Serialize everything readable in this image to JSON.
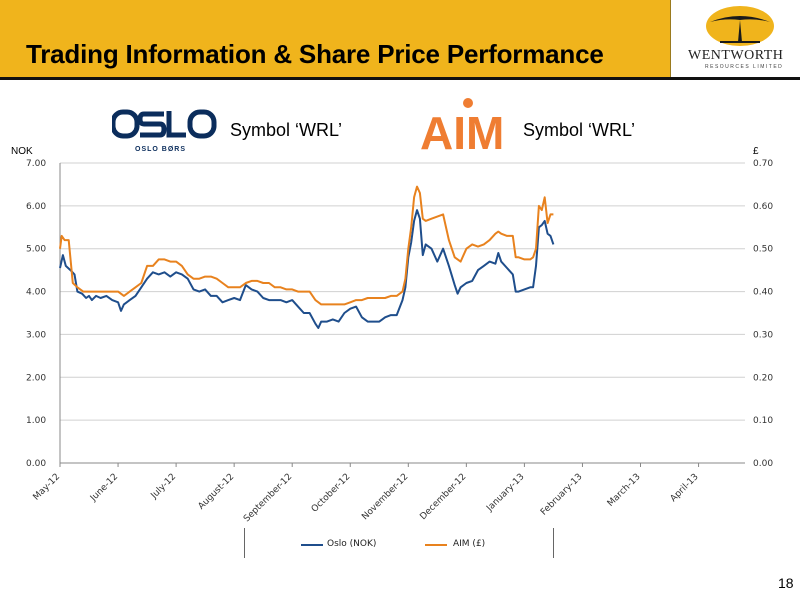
{
  "header": {
    "title": "Trading Information & Share Price Performance",
    "brand_color": "#f0b41c",
    "company_name": "WENTWORTH",
    "company_sub": "RESOURCES LIMITED"
  },
  "exchanges": {
    "oslo": {
      "logo_text": "OSLO BØRS",
      "symbol_label": "Symbol ‘WRL’"
    },
    "aim": {
      "logo_text": "AIM",
      "symbol_label": "Symbol ‘WRL’"
    }
  },
  "axis_units": {
    "left": "NOK",
    "right": "£"
  },
  "page_number": "18",
  "chart_data": {
    "type": "line",
    "x_categories": [
      "May-12",
      "June-12",
      "July-12",
      "August-12",
      "September-12",
      "October-12",
      "November-12",
      "December-12",
      "January-13",
      "February-13",
      "March-13",
      "April-13"
    ],
    "y_left": {
      "label": "NOK",
      "min": 0,
      "max": 7,
      "ticks": [
        "0.00",
        "1.00",
        "2.00",
        "3.00",
        "4.00",
        "5.00",
        "6.00",
        "7.00"
      ]
    },
    "y_right": {
      "label": "£",
      "min": 0,
      "max": 0.7,
      "ticks": [
        "0.00",
        "0.10",
        "0.20",
        "0.30",
        "0.40",
        "0.50",
        "0.60",
        "0.70"
      ]
    },
    "grid": true,
    "legend_position": "bottom",
    "series": [
      {
        "name": "Oslo (NOK)",
        "axis": "left",
        "color": "#1f4e8c",
        "points": [
          [
            0.0,
            4.55
          ],
          [
            0.05,
            4.85
          ],
          [
            0.1,
            4.6
          ],
          [
            0.18,
            4.5
          ],
          [
            0.25,
            4.4
          ],
          [
            0.3,
            4.0
          ],
          [
            0.38,
            3.95
          ],
          [
            0.45,
            3.85
          ],
          [
            0.5,
            3.9
          ],
          [
            0.55,
            3.8
          ],
          [
            0.62,
            3.9
          ],
          [
            0.7,
            3.85
          ],
          [
            0.8,
            3.9
          ],
          [
            0.9,
            3.8
          ],
          [
            1.0,
            3.75
          ],
          [
            1.05,
            3.55
          ],
          [
            1.1,
            3.7
          ],
          [
            1.2,
            3.8
          ],
          [
            1.3,
            3.9
          ],
          [
            1.4,
            4.1
          ],
          [
            1.5,
            4.3
          ],
          [
            1.6,
            4.45
          ],
          [
            1.7,
            4.4
          ],
          [
            1.8,
            4.45
          ],
          [
            1.9,
            4.35
          ],
          [
            2.0,
            4.45
          ],
          [
            2.1,
            4.4
          ],
          [
            2.2,
            4.3
          ],
          [
            2.3,
            4.05
          ],
          [
            2.4,
            4.0
          ],
          [
            2.5,
            4.05
          ],
          [
            2.6,
            3.9
          ],
          [
            2.7,
            3.9
          ],
          [
            2.8,
            3.75
          ],
          [
            2.9,
            3.8
          ],
          [
            3.0,
            3.85
          ],
          [
            3.1,
            3.8
          ],
          [
            3.2,
            4.15
          ],
          [
            3.3,
            4.05
          ],
          [
            3.4,
            4.0
          ],
          [
            3.5,
            3.85
          ],
          [
            3.6,
            3.8
          ],
          [
            3.7,
            3.8
          ],
          [
            3.8,
            3.8
          ],
          [
            3.9,
            3.75
          ],
          [
            4.0,
            3.8
          ],
          [
            4.1,
            3.65
          ],
          [
            4.2,
            3.5
          ],
          [
            4.3,
            3.5
          ],
          [
            4.4,
            3.25
          ],
          [
            4.45,
            3.15
          ],
          [
            4.5,
            3.3
          ],
          [
            4.6,
            3.3
          ],
          [
            4.7,
            3.35
          ],
          [
            4.8,
            3.3
          ],
          [
            4.9,
            3.5
          ],
          [
            5.0,
            3.6
          ],
          [
            5.1,
            3.65
          ],
          [
            5.2,
            3.4
          ],
          [
            5.3,
            3.3
          ],
          [
            5.4,
            3.3
          ],
          [
            5.5,
            3.3
          ],
          [
            5.6,
            3.4
          ],
          [
            5.7,
            3.45
          ],
          [
            5.8,
            3.45
          ],
          [
            5.9,
            3.8
          ],
          [
            5.95,
            4.1
          ],
          [
            6.0,
            4.8
          ],
          [
            6.05,
            5.15
          ],
          [
            6.1,
            5.65
          ],
          [
            6.15,
            5.9
          ],
          [
            6.2,
            5.7
          ],
          [
            6.25,
            4.85
          ],
          [
            6.3,
            5.1
          ],
          [
            6.4,
            5.0
          ],
          [
            6.5,
            4.7
          ],
          [
            6.6,
            5.0
          ],
          [
            6.7,
            4.6
          ],
          [
            6.8,
            4.15
          ],
          [
            6.85,
            3.95
          ],
          [
            6.9,
            4.1
          ],
          [
            7.0,
            4.2
          ],
          [
            7.1,
            4.25
          ],
          [
            7.2,
            4.5
          ],
          [
            7.3,
            4.6
          ],
          [
            7.4,
            4.7
          ],
          [
            7.5,
            4.65
          ],
          [
            7.55,
            4.9
          ],
          [
            7.6,
            4.7
          ],
          [
            7.7,
            4.55
          ],
          [
            7.8,
            4.4
          ],
          [
            7.85,
            4.0
          ],
          [
            7.9,
            4.0
          ],
          [
            8.0,
            4.05
          ],
          [
            8.1,
            4.1
          ],
          [
            8.15,
            4.1
          ],
          [
            8.2,
            4.6
          ],
          [
            8.25,
            5.5
          ],
          [
            8.3,
            5.55
          ],
          [
            8.35,
            5.65
          ],
          [
            8.4,
            5.35
          ],
          [
            8.45,
            5.3
          ],
          [
            8.5,
            5.1
          ]
        ]
      },
      {
        "name": "AIM (£)",
        "axis": "right",
        "color": "#e8821e",
        "points": [
          [
            0.0,
            0.5
          ],
          [
            0.03,
            0.53
          ],
          [
            0.08,
            0.52
          ],
          [
            0.15,
            0.52
          ],
          [
            0.22,
            0.42
          ],
          [
            0.3,
            0.41
          ],
          [
            0.4,
            0.4
          ],
          [
            0.5,
            0.4
          ],
          [
            0.6,
            0.4
          ],
          [
            0.7,
            0.4
          ],
          [
            0.8,
            0.4
          ],
          [
            0.9,
            0.4
          ],
          [
            1.0,
            0.4
          ],
          [
            1.1,
            0.39
          ],
          [
            1.2,
            0.4
          ],
          [
            1.3,
            0.41
          ],
          [
            1.4,
            0.42
          ],
          [
            1.5,
            0.46
          ],
          [
            1.6,
            0.46
          ],
          [
            1.7,
            0.475
          ],
          [
            1.8,
            0.475
          ],
          [
            1.9,
            0.47
          ],
          [
            2.0,
            0.47
          ],
          [
            2.1,
            0.46
          ],
          [
            2.2,
            0.44
          ],
          [
            2.3,
            0.43
          ],
          [
            2.4,
            0.43
          ],
          [
            2.5,
            0.435
          ],
          [
            2.6,
            0.435
          ],
          [
            2.7,
            0.43
          ],
          [
            2.8,
            0.42
          ],
          [
            2.9,
            0.41
          ],
          [
            3.0,
            0.41
          ],
          [
            3.1,
            0.41
          ],
          [
            3.2,
            0.42
          ],
          [
            3.3,
            0.425
          ],
          [
            3.4,
            0.425
          ],
          [
            3.5,
            0.42
          ],
          [
            3.6,
            0.42
          ],
          [
            3.7,
            0.41
          ],
          [
            3.8,
            0.41
          ],
          [
            3.9,
            0.405
          ],
          [
            4.0,
            0.405
          ],
          [
            4.1,
            0.4
          ],
          [
            4.2,
            0.4
          ],
          [
            4.3,
            0.4
          ],
          [
            4.4,
            0.38
          ],
          [
            4.5,
            0.37
          ],
          [
            4.6,
            0.37
          ],
          [
            4.7,
            0.37
          ],
          [
            4.8,
            0.37
          ],
          [
            4.9,
            0.37
          ],
          [
            5.0,
            0.375
          ],
          [
            5.1,
            0.38
          ],
          [
            5.2,
            0.38
          ],
          [
            5.3,
            0.385
          ],
          [
            5.4,
            0.385
          ],
          [
            5.5,
            0.385
          ],
          [
            5.6,
            0.385
          ],
          [
            5.7,
            0.39
          ],
          [
            5.8,
            0.39
          ],
          [
            5.9,
            0.4
          ],
          [
            5.95,
            0.43
          ],
          [
            6.0,
            0.5
          ],
          [
            6.05,
            0.55
          ],
          [
            6.1,
            0.62
          ],
          [
            6.15,
            0.645
          ],
          [
            6.2,
            0.63
          ],
          [
            6.25,
            0.57
          ],
          [
            6.3,
            0.565
          ],
          [
            6.4,
            0.57
          ],
          [
            6.5,
            0.575
          ],
          [
            6.6,
            0.58
          ],
          [
            6.7,
            0.52
          ],
          [
            6.8,
            0.48
          ],
          [
            6.9,
            0.47
          ],
          [
            7.0,
            0.5
          ],
          [
            7.1,
            0.51
          ],
          [
            7.2,
            0.505
          ],
          [
            7.3,
            0.51
          ],
          [
            7.4,
            0.52
          ],
          [
            7.5,
            0.535
          ],
          [
            7.55,
            0.54
          ],
          [
            7.6,
            0.535
          ],
          [
            7.7,
            0.53
          ],
          [
            7.8,
            0.53
          ],
          [
            7.85,
            0.48
          ],
          [
            7.9,
            0.48
          ],
          [
            8.0,
            0.475
          ],
          [
            8.1,
            0.475
          ],
          [
            8.15,
            0.48
          ],
          [
            8.2,
            0.5
          ],
          [
            8.25,
            0.6
          ],
          [
            8.3,
            0.59
          ],
          [
            8.35,
            0.62
          ],
          [
            8.4,
            0.56
          ],
          [
            8.45,
            0.58
          ],
          [
            8.5,
            0.58
          ]
        ]
      }
    ]
  }
}
